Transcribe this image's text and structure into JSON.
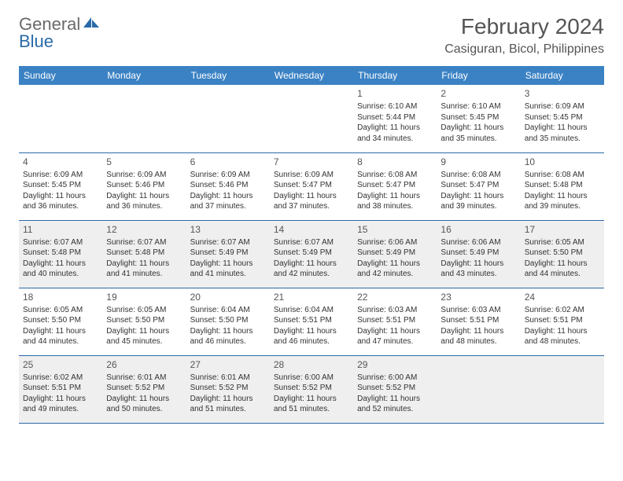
{
  "logo": {
    "text1": "General",
    "text2": "Blue"
  },
  "title": "February 2024",
  "location": "Casiguran, Bicol, Philippines",
  "colors": {
    "header_bg": "#3b82c4",
    "header_text": "#ffffff",
    "row_alt_bg": "#efefef",
    "border": "#2b6aa8",
    "logo_general": "#6a6a6a",
    "logo_blue": "#2b6aa8"
  },
  "day_names": [
    "Sunday",
    "Monday",
    "Tuesday",
    "Wednesday",
    "Thursday",
    "Friday",
    "Saturday"
  ],
  "weeks": [
    [
      null,
      null,
      null,
      null,
      {
        "d": "1",
        "sr": "Sunrise: 6:10 AM",
        "ss": "Sunset: 5:44 PM",
        "dl1": "Daylight: 11 hours",
        "dl2": "and 34 minutes."
      },
      {
        "d": "2",
        "sr": "Sunrise: 6:10 AM",
        "ss": "Sunset: 5:45 PM",
        "dl1": "Daylight: 11 hours",
        "dl2": "and 35 minutes."
      },
      {
        "d": "3",
        "sr": "Sunrise: 6:09 AM",
        "ss": "Sunset: 5:45 PM",
        "dl1": "Daylight: 11 hours",
        "dl2": "and 35 minutes."
      }
    ],
    [
      {
        "d": "4",
        "sr": "Sunrise: 6:09 AM",
        "ss": "Sunset: 5:45 PM",
        "dl1": "Daylight: 11 hours",
        "dl2": "and 36 minutes."
      },
      {
        "d": "5",
        "sr": "Sunrise: 6:09 AM",
        "ss": "Sunset: 5:46 PM",
        "dl1": "Daylight: 11 hours",
        "dl2": "and 36 minutes."
      },
      {
        "d": "6",
        "sr": "Sunrise: 6:09 AM",
        "ss": "Sunset: 5:46 PM",
        "dl1": "Daylight: 11 hours",
        "dl2": "and 37 minutes."
      },
      {
        "d": "7",
        "sr": "Sunrise: 6:09 AM",
        "ss": "Sunset: 5:47 PM",
        "dl1": "Daylight: 11 hours",
        "dl2": "and 37 minutes."
      },
      {
        "d": "8",
        "sr": "Sunrise: 6:08 AM",
        "ss": "Sunset: 5:47 PM",
        "dl1": "Daylight: 11 hours",
        "dl2": "and 38 minutes."
      },
      {
        "d": "9",
        "sr": "Sunrise: 6:08 AM",
        "ss": "Sunset: 5:47 PM",
        "dl1": "Daylight: 11 hours",
        "dl2": "and 39 minutes."
      },
      {
        "d": "10",
        "sr": "Sunrise: 6:08 AM",
        "ss": "Sunset: 5:48 PM",
        "dl1": "Daylight: 11 hours",
        "dl2": "and 39 minutes."
      }
    ],
    [
      {
        "d": "11",
        "sr": "Sunrise: 6:07 AM",
        "ss": "Sunset: 5:48 PM",
        "dl1": "Daylight: 11 hours",
        "dl2": "and 40 minutes."
      },
      {
        "d": "12",
        "sr": "Sunrise: 6:07 AM",
        "ss": "Sunset: 5:48 PM",
        "dl1": "Daylight: 11 hours",
        "dl2": "and 41 minutes."
      },
      {
        "d": "13",
        "sr": "Sunrise: 6:07 AM",
        "ss": "Sunset: 5:49 PM",
        "dl1": "Daylight: 11 hours",
        "dl2": "and 41 minutes."
      },
      {
        "d": "14",
        "sr": "Sunrise: 6:07 AM",
        "ss": "Sunset: 5:49 PM",
        "dl1": "Daylight: 11 hours",
        "dl2": "and 42 minutes."
      },
      {
        "d": "15",
        "sr": "Sunrise: 6:06 AM",
        "ss": "Sunset: 5:49 PM",
        "dl1": "Daylight: 11 hours",
        "dl2": "and 42 minutes."
      },
      {
        "d": "16",
        "sr": "Sunrise: 6:06 AM",
        "ss": "Sunset: 5:49 PM",
        "dl1": "Daylight: 11 hours",
        "dl2": "and 43 minutes."
      },
      {
        "d": "17",
        "sr": "Sunrise: 6:05 AM",
        "ss": "Sunset: 5:50 PM",
        "dl1": "Daylight: 11 hours",
        "dl2": "and 44 minutes."
      }
    ],
    [
      {
        "d": "18",
        "sr": "Sunrise: 6:05 AM",
        "ss": "Sunset: 5:50 PM",
        "dl1": "Daylight: 11 hours",
        "dl2": "and 44 minutes."
      },
      {
        "d": "19",
        "sr": "Sunrise: 6:05 AM",
        "ss": "Sunset: 5:50 PM",
        "dl1": "Daylight: 11 hours",
        "dl2": "and 45 minutes."
      },
      {
        "d": "20",
        "sr": "Sunrise: 6:04 AM",
        "ss": "Sunset: 5:50 PM",
        "dl1": "Daylight: 11 hours",
        "dl2": "and 46 minutes."
      },
      {
        "d": "21",
        "sr": "Sunrise: 6:04 AM",
        "ss": "Sunset: 5:51 PM",
        "dl1": "Daylight: 11 hours",
        "dl2": "and 46 minutes."
      },
      {
        "d": "22",
        "sr": "Sunrise: 6:03 AM",
        "ss": "Sunset: 5:51 PM",
        "dl1": "Daylight: 11 hours",
        "dl2": "and 47 minutes."
      },
      {
        "d": "23",
        "sr": "Sunrise: 6:03 AM",
        "ss": "Sunset: 5:51 PM",
        "dl1": "Daylight: 11 hours",
        "dl2": "and 48 minutes."
      },
      {
        "d": "24",
        "sr": "Sunrise: 6:02 AM",
        "ss": "Sunset: 5:51 PM",
        "dl1": "Daylight: 11 hours",
        "dl2": "and 48 minutes."
      }
    ],
    [
      {
        "d": "25",
        "sr": "Sunrise: 6:02 AM",
        "ss": "Sunset: 5:51 PM",
        "dl1": "Daylight: 11 hours",
        "dl2": "and 49 minutes."
      },
      {
        "d": "26",
        "sr": "Sunrise: 6:01 AM",
        "ss": "Sunset: 5:52 PM",
        "dl1": "Daylight: 11 hours",
        "dl2": "and 50 minutes."
      },
      {
        "d": "27",
        "sr": "Sunrise: 6:01 AM",
        "ss": "Sunset: 5:52 PM",
        "dl1": "Daylight: 11 hours",
        "dl2": "and 51 minutes."
      },
      {
        "d": "28",
        "sr": "Sunrise: 6:00 AM",
        "ss": "Sunset: 5:52 PM",
        "dl1": "Daylight: 11 hours",
        "dl2": "and 51 minutes."
      },
      {
        "d": "29",
        "sr": "Sunrise: 6:00 AM",
        "ss": "Sunset: 5:52 PM",
        "dl1": "Daylight: 11 hours",
        "dl2": "and 52 minutes."
      },
      null,
      null
    ]
  ]
}
